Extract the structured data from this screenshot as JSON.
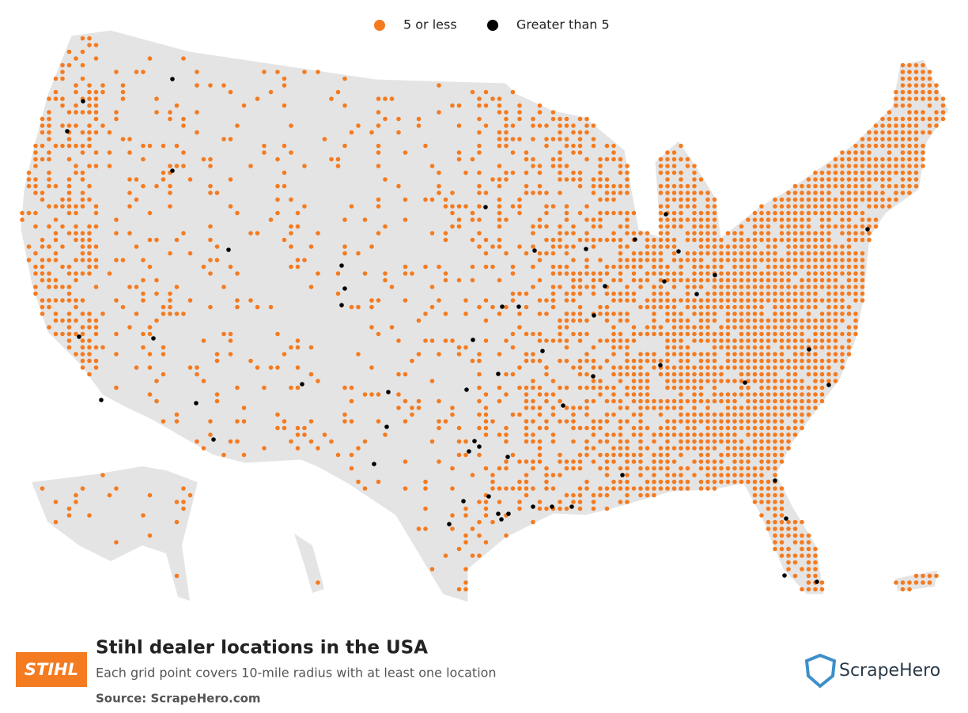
{
  "legend": {
    "items": [
      {
        "label": "5 or less",
        "color": "#f47b20"
      },
      {
        "label": "Greater than 5",
        "color": "#000000"
      }
    ]
  },
  "title": "Stihl dealer locations in the USA",
  "subtitle": "Each grid point covers 10-mile radius with at least one location",
  "source": "Source: ScrapeHero.com",
  "brand_logo": "STIHL",
  "publisher_logo": "ScrapeHero"
}
